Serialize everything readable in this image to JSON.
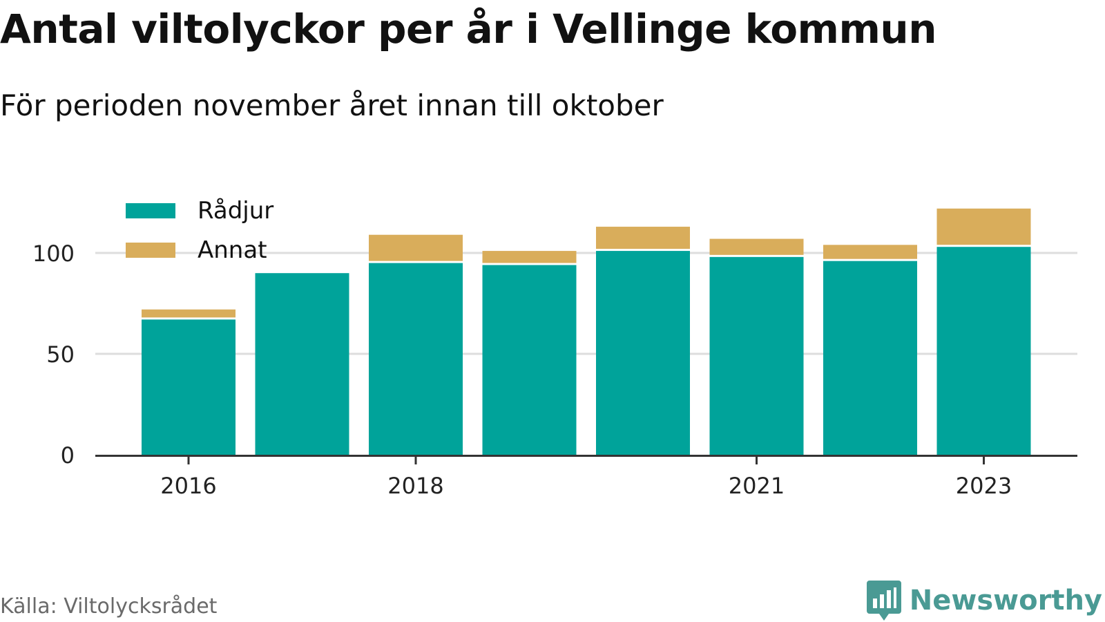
{
  "title": "Antal viltolyckor per år i Vellinge kommun",
  "subtitle": "För perioden november året innan till oktober",
  "source": "Källa: Viltolycksrådet",
  "brand": "Newsworthy",
  "colors": {
    "radjur": "#00a39a",
    "annat": "#d9ad5b",
    "grid": "#dddddd",
    "axis": "#333333",
    "brand": "#4a9a94"
  },
  "icons": {
    "brand_logo": "bar-chart-speech-bubble-icon"
  },
  "chart_data": {
    "type": "bar",
    "stacked": true,
    "categories": [
      "2016",
      "2017",
      "2018",
      "2019",
      "2020",
      "2021",
      "2022",
      "2023"
    ],
    "x_tick_labels": [
      "2016",
      "2018",
      "2021",
      "2023"
    ],
    "series": [
      {
        "name": "Rådjur",
        "values": [
          67,
          90,
          95,
          94,
          101,
          98,
          96,
          103
        ]
      },
      {
        "name": "Annat",
        "values": [
          5,
          0,
          14,
          7,
          12,
          9,
          8,
          19
        ]
      }
    ],
    "y_ticks": [
      0,
      50,
      100
    ],
    "ylim": [
      0,
      125
    ],
    "grid": true,
    "legend_position": "top-left"
  }
}
